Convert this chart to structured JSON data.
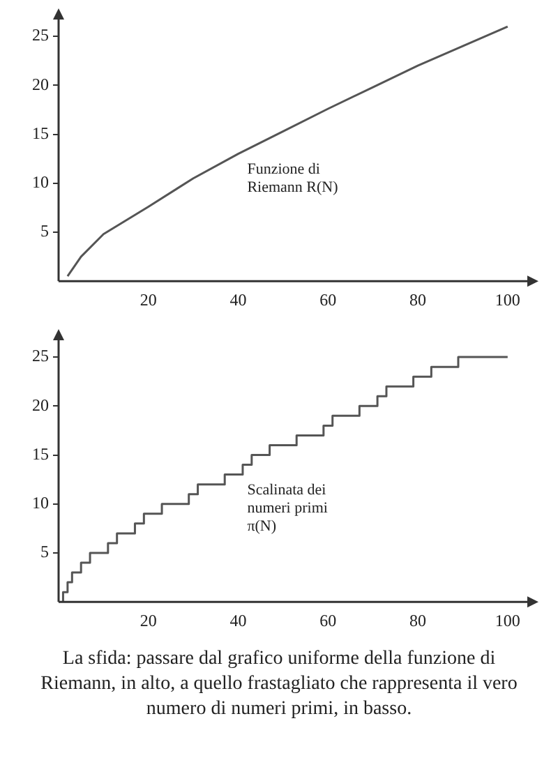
{
  "chart_data": [
    {
      "type": "line",
      "x": [
        2,
        5,
        10,
        20,
        30,
        40,
        50,
        60,
        70,
        80,
        90,
        100
      ],
      "series": [
        {
          "name": "Funzione di Riemann R(N)",
          "color": "#555555",
          "values": [
            0.5,
            2.5,
            4.8,
            7.6,
            10.5,
            13,
            15.3,
            17.6,
            19.8,
            22,
            24,
            26
          ]
        }
      ],
      "xlim": [
        0,
        105
      ],
      "ylim": [
        0,
        27
      ],
      "xticks": [
        20,
        40,
        60,
        80,
        100
      ],
      "yticks": [
        5,
        10,
        15,
        20,
        25
      ],
      "grid": false,
      "legend": false,
      "marker": "none"
    },
    {
      "type": "step",
      "x": [
        1,
        2,
        3,
        5,
        7,
        11,
        13,
        17,
        19,
        23,
        29,
        31,
        37,
        41,
        43,
        47,
        53,
        59,
        61,
        67,
        71,
        73,
        79,
        83,
        89,
        97,
        100
      ],
      "series": [
        {
          "name": "Scalinata dei numeri primi π(N)",
          "color": "#555555",
          "values": [
            0,
            1,
            2,
            3,
            4,
            5,
            6,
            7,
            8,
            9,
            10,
            11,
            12,
            13,
            14,
            15,
            16,
            17,
            18,
            19,
            20,
            21,
            22,
            23,
            24,
            25,
            25
          ]
        }
      ],
      "xlim": [
        0,
        105
      ],
      "ylim": [
        0,
        27
      ],
      "xticks": [
        20,
        40,
        60,
        80,
        100
      ],
      "yticks": [
        5,
        10,
        15,
        20,
        25
      ],
      "grid": false,
      "legend": false,
      "marker": "none",
      "annotations": [
        "La sfida: passare dal grafico uniforme della funzione di Riemann, in alto, a quello frastagliato che rappresenta il vero numero di numeri primi, in basso."
      ]
    }
  ]
}
